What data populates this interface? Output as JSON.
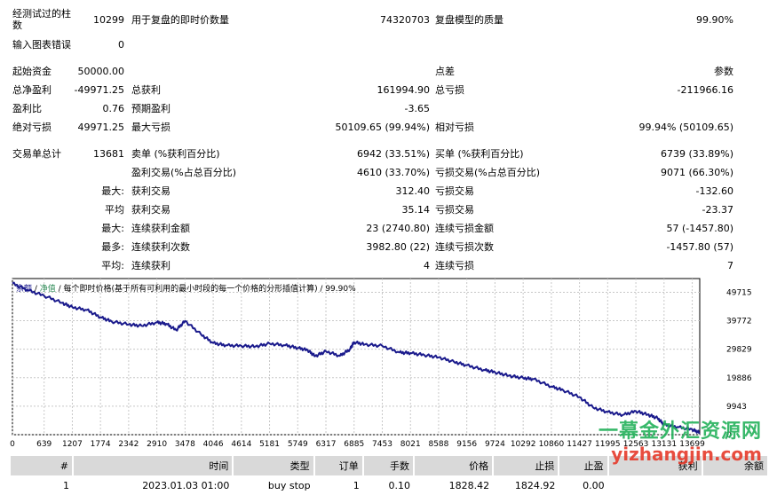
{
  "report": {
    "bars_tested_label": "经测试过的柱数",
    "bars_tested_value": "10299",
    "ticks_label": "用于复盘的即时价数量",
    "ticks_value": "74320703",
    "quality_label": "复盘模型的质量",
    "quality_value": "99.90%",
    "mismatch_label": "输入图表错误",
    "mismatch_value": "0",
    "initial_deposit_label": "起始资金",
    "initial_deposit_value": "50000.00",
    "spread_label": "点差",
    "spread_value": "参数",
    "net_profit_label": "总净盈利",
    "net_profit_value": "-49971.25",
    "gross_profit_label": "总获利",
    "gross_profit_value": "161994.90",
    "gross_loss_label": "总亏损",
    "gross_loss_value": "-211966.16",
    "profit_factor_label": "盈利比",
    "profit_factor_value": "0.76",
    "expected_payoff_label": "预期盈利",
    "expected_payoff_value": "-3.65",
    "abs_drawdown_label": "绝对亏损",
    "abs_drawdown_value": "49971.25",
    "max_drawdown_label": "最大亏损",
    "max_drawdown_value": "50109.65 (99.94%)",
    "rel_drawdown_label": "相对亏损",
    "rel_drawdown_value": "99.94% (50109.65)",
    "total_trades_label": "交易单总计",
    "total_trades_value": "13681",
    "short_label": "卖单 (%获利百分比)",
    "short_value": "6942 (33.51%)",
    "long_label": "买单 (%获利百分比)",
    "long_value": "6739 (33.89%)",
    "profit_trades_label": "盈利交易(%占总百分比)",
    "profit_trades_value": "4610 (33.70%)",
    "loss_trades_label": "亏损交易(%占总百分比)",
    "loss_trades_value": "9071 (66.30%)",
    "largest_prefix": "最大:",
    "largest_profit_label": "获利交易",
    "largest_profit_value": "312.40",
    "largest_loss_label": "亏损交易",
    "largest_loss_value": "-132.60",
    "average_prefix": "平均",
    "average_profit_label": "获利交易",
    "average_profit_value": "35.14",
    "average_loss_label": "亏损交易",
    "average_loss_value": "-23.37",
    "max_cons_prefix": "最大:",
    "max_cons_wins_label": "连续获利金额",
    "max_cons_wins_value": "23 (2740.80)",
    "max_cons_losses_label": "连续亏损金额",
    "max_cons_losses_value": "57 (-1457.80)",
    "maximal_prefix": "最多:",
    "maximal_cons_profit_label": "连续获利次数",
    "maximal_cons_profit_value": "3982.80 (22)",
    "maximal_cons_loss_label": "连续亏损次数",
    "maximal_cons_loss_value": "-1457.80 (57)",
    "avg_cons_prefix": "平均:",
    "avg_cons_wins_label": "连续获利",
    "avg_cons_wins_value": "4",
    "avg_cons_losses_label": "连续亏损",
    "avg_cons_losses_value": "7"
  },
  "chart_legend": {
    "balance": "余额",
    "separator": " / ",
    "equity": "净值",
    "description": " / 每个即时价格(基于所有可利用的最小时段的每一个价格的分形插值计算) / 99.90%"
  },
  "chart_data": {
    "type": "line",
    "title": "",
    "xlabel": "",
    "ylabel": "",
    "x_ticks": [
      "0",
      "639",
      "1207",
      "1774",
      "2342",
      "2910",
      "3478",
      "4046",
      "4614",
      "5181",
      "5749",
      "6317",
      "6885",
      "7453",
      "8021",
      "8588",
      "9156",
      "9724",
      "10292",
      "10860",
      "11427",
      "11995",
      "12563",
      "13131",
      "13699"
    ],
    "y_ticks": [
      "49715",
      "39772",
      "29829",
      "19886",
      "9943",
      "0"
    ],
    "xlim": [
      0,
      13850
    ],
    "ylim": [
      0,
      54500
    ],
    "series": [
      {
        "color": "#1a1a8c",
        "x": [
          0,
          300,
          639,
          1000,
          1207,
          1500,
          1774,
          2000,
          2342,
          2600,
          2910,
          3100,
          3300,
          3478,
          3800,
          4046,
          4300,
          4614,
          4900,
          5181,
          5500,
          5749,
          5950,
          6100,
          6317,
          6600,
          6800,
          6885,
          7100,
          7453,
          7800,
          8021,
          8300,
          8588,
          8900,
          9156,
          9500,
          9724,
          10000,
          10292,
          10500,
          10860,
          11100,
          11427,
          11700,
          11995,
          12300,
          12563,
          12800,
          13000,
          13131,
          13400,
          13699,
          13850
        ],
        "y": [
          52800,
          50500,
          48500,
          46000,
          44500,
          43500,
          41000,
          39500,
          38500,
          38000,
          39200,
          38700,
          36500,
          39700,
          35000,
          32000,
          31200,
          31000,
          30800,
          31800,
          31200,
          30300,
          29500,
          27400,
          29100,
          27500,
          29800,
          32300,
          31500,
          31000,
          28700,
          28500,
          27800,
          27000,
          25400,
          24200,
          22600,
          21800,
          20600,
          19800,
          19400,
          16800,
          15500,
          13100,
          9500,
          7900,
          6900,
          8200,
          7000,
          5800,
          3500,
          2700,
          1800,
          700
        ]
      }
    ]
  },
  "trades_table": {
    "headers": [
      "#",
      "时间",
      "类型",
      "订单",
      "手数",
      "价格",
      "止损",
      "止盈",
      "获利",
      "余额"
    ],
    "rows": [
      [
        "1",
        "2023.01.03 01:00",
        "buy stop",
        "1",
        "0.10",
        "1828.42",
        "1824.92",
        "0.00",
        "",
        ""
      ]
    ]
  },
  "watermark": {
    "cn": "一幕金外汇资源网",
    "en": "yizhangjin.com"
  }
}
